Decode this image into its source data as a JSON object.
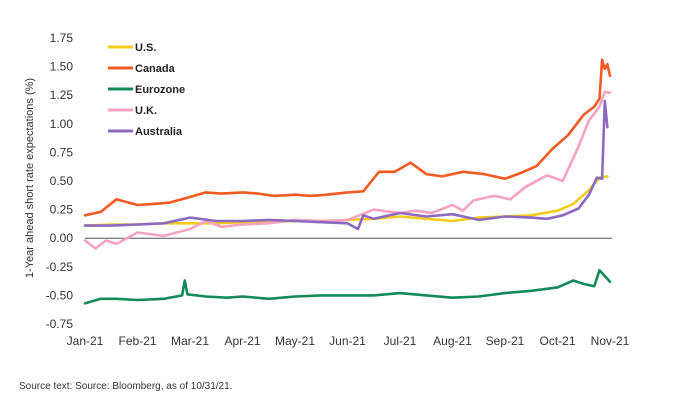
{
  "chart_data": {
    "type": "line",
    "title": "",
    "xlabel": "",
    "ylabel": "1-Year ahead short rate expectations (%)",
    "ylim": [
      -0.75,
      1.75
    ],
    "yticks": [
      1.75,
      1.5,
      1.25,
      1.0,
      0.75,
      0.5,
      0.25,
      0.0,
      -0.25,
      -0.5,
      -0.75
    ],
    "ytick_labels": [
      "1.75",
      "1.50",
      "1.25",
      "1.00",
      "0.75",
      "0.50",
      "0.25",
      "0.00",
      "-0.25",
      "-0.50",
      "-0.75"
    ],
    "x_tick_labels": [
      "Jan-21",
      "Feb-21",
      "Mar-21",
      "Apr-21",
      "May-21",
      "Jun-21",
      "Jul-21",
      "Aug-21",
      "Sep-21",
      "Oct-21",
      "Nov-21"
    ],
    "x_unit": "months since Jan-21",
    "legend_position": "top-left",
    "series": [
      {
        "name": "U.S.",
        "color": "#f3cb1d",
        "x": [
          0,
          0.5,
          1,
          1.5,
          2,
          2.5,
          3,
          3.5,
          4,
          4.5,
          5,
          5.5,
          6,
          6.5,
          7,
          7.5,
          8,
          8.5,
          9,
          9.3,
          9.6,
          9.8,
          9.95
        ],
        "values": [
          0.11,
          0.12,
          0.12,
          0.13,
          0.13,
          0.13,
          0.14,
          0.14,
          0.15,
          0.15,
          0.16,
          0.17,
          0.19,
          0.17,
          0.15,
          0.18,
          0.19,
          0.2,
          0.24,
          0.3,
          0.42,
          0.53,
          0.54
        ]
      },
      {
        "name": "Canada",
        "color": "#f15a22",
        "x": [
          0,
          0.3,
          0.6,
          1,
          1.3,
          1.6,
          2,
          2.3,
          2.6,
          3,
          3.3,
          3.6,
          4,
          4.3,
          4.6,
          5,
          5.3,
          5.6,
          5.9,
          6.2,
          6.5,
          6.8,
          7.2,
          7.6,
          8,
          8.3,
          8.6,
          8.9,
          9.2,
          9.5,
          9.7,
          9.8,
          9.85,
          9.9,
          9.95,
          10.0
        ],
        "values": [
          0.2,
          0.23,
          0.34,
          0.29,
          0.3,
          0.31,
          0.36,
          0.4,
          0.39,
          0.4,
          0.39,
          0.37,
          0.38,
          0.37,
          0.38,
          0.4,
          0.41,
          0.58,
          0.58,
          0.66,
          0.56,
          0.54,
          0.58,
          0.56,
          0.52,
          0.57,
          0.63,
          0.78,
          0.9,
          1.08,
          1.15,
          1.22,
          1.56,
          1.48,
          1.52,
          1.42
        ]
      },
      {
        "name": "Eurozone",
        "color": "#14895a",
        "x": [
          0,
          0.3,
          0.6,
          1,
          1.5,
          1.85,
          1.9,
          1.95,
          2.3,
          2.7,
          3,
          3.5,
          4,
          4.5,
          5,
          5.5,
          6,
          6.5,
          7,
          7.5,
          8,
          8.5,
          9,
          9.3,
          9.5,
          9.7,
          9.8,
          9.9,
          10.0
        ],
        "values": [
          -0.57,
          -0.53,
          -0.53,
          -0.54,
          -0.53,
          -0.5,
          -0.37,
          -0.49,
          -0.51,
          -0.52,
          -0.51,
          -0.53,
          -0.51,
          -0.5,
          -0.5,
          -0.5,
          -0.48,
          -0.5,
          -0.52,
          -0.51,
          -0.48,
          -0.46,
          -0.43,
          -0.37,
          -0.4,
          -0.42,
          -0.28,
          -0.33,
          -0.38
        ]
      },
      {
        "name": "U.K.",
        "color": "#f5a3c2",
        "x": [
          0,
          0.2,
          0.4,
          0.6,
          1,
          1.5,
          2,
          2.3,
          2.6,
          3,
          3.5,
          4,
          4.5,
          5,
          5.5,
          6,
          6.3,
          6.6,
          7,
          7.2,
          7.4,
          7.8,
          8.1,
          8.4,
          8.8,
          9.1,
          9.4,
          9.6,
          9.8,
          9.9,
          10.0
        ],
        "values": [
          -0.02,
          -0.09,
          -0.02,
          -0.05,
          0.05,
          0.02,
          0.08,
          0.15,
          0.1,
          0.12,
          0.13,
          0.16,
          0.15,
          0.16,
          0.25,
          0.22,
          0.24,
          0.22,
          0.29,
          0.24,
          0.33,
          0.37,
          0.34,
          0.45,
          0.55,
          0.5,
          0.8,
          1.03,
          1.15,
          1.28,
          1.27
        ]
      },
      {
        "name": "Australia",
        "color": "#8c6ac1",
        "x": [
          0,
          0.5,
          1,
          1.5,
          2,
          2.5,
          3,
          3.5,
          4,
          4.5,
          5,
          5.2,
          5.3,
          5.5,
          6,
          6.5,
          7,
          7.5,
          8,
          8.5,
          8.8,
          9.1,
          9.4,
          9.6,
          9.75,
          9.85,
          9.9,
          9.95
        ],
        "values": [
          0.11,
          0.11,
          0.12,
          0.13,
          0.18,
          0.15,
          0.15,
          0.16,
          0.15,
          0.14,
          0.13,
          0.08,
          0.2,
          0.17,
          0.22,
          0.19,
          0.21,
          0.16,
          0.19,
          0.18,
          0.17,
          0.2,
          0.26,
          0.38,
          0.53,
          0.52,
          1.2,
          0.97
        ]
      }
    ]
  },
  "source_text": "Source text: Source: Bloomberg, as of 10/31/21."
}
